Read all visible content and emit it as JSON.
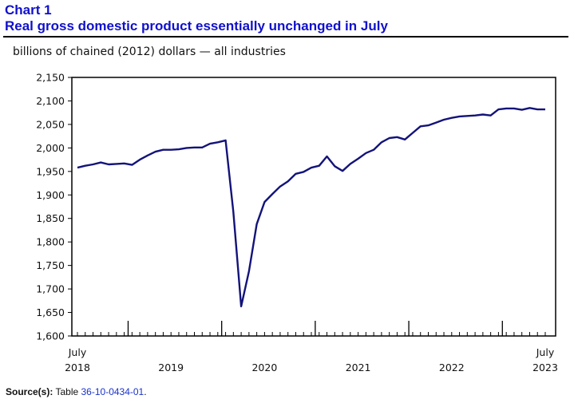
{
  "header": {
    "chart_number": "Chart 1",
    "title": "Real gross domestic product essentially unchanged in July"
  },
  "source": {
    "label": "Source(s):",
    "text": "Table",
    "link": "36-10-0434-01",
    "suffix": "."
  },
  "colors": {
    "title": "#1010cc",
    "line": "#13137a",
    "link": "#1a33cc"
  },
  "chart_data": {
    "type": "line",
    "title": "Real gross domestic product essentially unchanged in July",
    "ylabel": "billions of chained (2012) dollars — all industries",
    "ylim": [
      1600,
      2150
    ],
    "yticks": [
      1600,
      1650,
      1700,
      1750,
      1800,
      1850,
      1900,
      1950,
      2000,
      2050,
      2100,
      2150
    ],
    "ytick_labels": [
      "1,600",
      "1,650",
      "1,700",
      "1,750",
      "1,800",
      "1,850",
      "1,900",
      "1,950",
      "2,000",
      "2,050",
      "2,100",
      "2,150"
    ],
    "x_start": "July 2018",
    "x_end": "July 2023",
    "x_month_labels": [
      {
        "index": 0,
        "month": "July",
        "year": "2018"
      },
      {
        "index": 60,
        "month": "July",
        "year": "2023"
      }
    ],
    "x_year_labels": [
      {
        "center_index": 12,
        "label": "2019"
      },
      {
        "center_index": 24,
        "label": "2020"
      },
      {
        "center_index": 36,
        "label": "2021"
      },
      {
        "center_index": 48,
        "label": "2022"
      }
    ],
    "year_boundary_indices": [
      6,
      18,
      30,
      42,
      54
    ],
    "series": [
      {
        "name": "Real GDP, all industries",
        "values": [
          1958,
          1962,
          1965,
          1969,
          1965,
          1966,
          1967,
          1964,
          1975,
          1984,
          1992,
          1996,
          1996,
          1997,
          2000,
          2001,
          2001,
          2009,
          2012,
          2016,
          1864,
          1663,
          1738,
          1838,
          1885,
          1902,
          1918,
          1929,
          1945,
          1949,
          1958,
          1962,
          1982,
          1961,
          1951,
          1966,
          1977,
          1989,
          1996,
          2012,
          2021,
          2023,
          2018,
          2032,
          2046,
          2048,
          2054,
          2060,
          2064,
          2067,
          2068,
          2069,
          2071,
          2069,
          2082,
          2084,
          2084,
          2081,
          2085,
          2082,
          2082
        ]
      }
    ]
  }
}
